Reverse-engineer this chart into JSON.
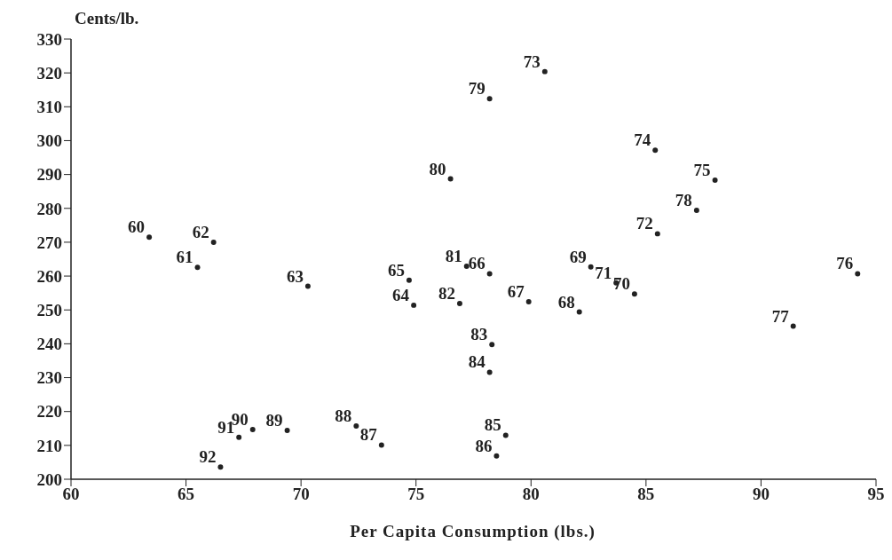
{
  "chart_data": {
    "type": "scatter",
    "xlabel": "Per Capita Consumption (lbs.)",
    "ylabel": "Cents/lb.",
    "x": [
      63.4,
      65.5,
      66.2,
      70.3,
      74.9,
      74.7,
      78.2,
      79.9,
      82.1,
      82.6,
      84.5,
      83.7,
      85.5,
      80.6,
      85.4,
      88.0,
      94.2,
      91.4,
      87.2,
      78.2,
      76.5,
      77.2,
      76.9,
      78.3,
      78.2,
      78.9,
      78.5,
      73.5,
      72.4,
      69.4,
      67.9,
      67.3,
      66.5
    ],
    "values": [
      271.5,
      262.6,
      270.0,
      257.0,
      251.4,
      258.8,
      260.7,
      252.4,
      249.4,
      262.7,
      254.7,
      258.0,
      272.5,
      320.4,
      297.2,
      288.3,
      260.7,
      245.2,
      279.4,
      312.4,
      288.7,
      262.9,
      251.9,
      239.8,
      231.6,
      213.0,
      206.9,
      210.1,
      215.7,
      214.4,
      214.7,
      212.4,
      203.6
    ],
    "annotations": [
      {
        "text": "60",
        "x": 63.4,
        "y": 271.5
      },
      {
        "text": "61",
        "x": 65.5,
        "y": 262.6
      },
      {
        "text": "62",
        "x": 66.2,
        "y": 270.0
      },
      {
        "text": "63",
        "x": 70.3,
        "y": 257.0
      },
      {
        "text": "64",
        "x": 74.9,
        "y": 251.4
      },
      {
        "text": "65",
        "x": 74.7,
        "y": 258.8
      },
      {
        "text": "66",
        "x": 78.2,
        "y": 260.7
      },
      {
        "text": "67",
        "x": 79.9,
        "y": 252.4
      },
      {
        "text": "68",
        "x": 82.1,
        "y": 249.4
      },
      {
        "text": "69",
        "x": 82.6,
        "y": 262.7
      },
      {
        "text": "70",
        "x": 84.5,
        "y": 254.7
      },
      {
        "text": "71",
        "x": 83.7,
        "y": 258.0
      },
      {
        "text": "72",
        "x": 85.5,
        "y": 272.5
      },
      {
        "text": "73",
        "x": 80.6,
        "y": 320.4
      },
      {
        "text": "74",
        "x": 85.4,
        "y": 297.2
      },
      {
        "text": "75",
        "x": 88.0,
        "y": 288.3
      },
      {
        "text": "76",
        "x": 94.2,
        "y": 260.7
      },
      {
        "text": "77",
        "x": 91.4,
        "y": 245.2
      },
      {
        "text": "78",
        "x": 87.2,
        "y": 279.4
      },
      {
        "text": "79",
        "x": 78.2,
        "y": 312.4
      },
      {
        "text": "80",
        "x": 76.5,
        "y": 288.7
      },
      {
        "text": "81",
        "x": 77.2,
        "y": 262.9
      },
      {
        "text": "82",
        "x": 76.9,
        "y": 251.9
      },
      {
        "text": "83",
        "x": 78.3,
        "y": 239.8
      },
      {
        "text": "84",
        "x": 78.2,
        "y": 231.6
      },
      {
        "text": "85",
        "x": 78.9,
        "y": 213.0
      },
      {
        "text": "86",
        "x": 78.5,
        "y": 206.9
      },
      {
        "text": "87",
        "x": 73.5,
        "y": 210.1
      },
      {
        "text": "88",
        "x": 72.4,
        "y": 215.7
      },
      {
        "text": "89",
        "x": 69.4,
        "y": 214.4
      },
      {
        "text": "90",
        "x": 67.9,
        "y": 214.7
      },
      {
        "text": "91",
        "x": 67.3,
        "y": 212.4
      },
      {
        "text": "92",
        "x": 66.5,
        "y": 203.6
      }
    ],
    "color": "#222222",
    "marker": "circle",
    "grid": false,
    "legend": false,
    "xlim": [
      60,
      95
    ],
    "xticks": [
      60,
      65,
      70,
      75,
      80,
      85,
      90,
      95
    ],
    "ylim": [
      200,
      330
    ],
    "yticks": [
      200,
      210,
      220,
      230,
      240,
      250,
      260,
      270,
      280,
      290,
      300,
      310,
      320,
      330
    ]
  }
}
